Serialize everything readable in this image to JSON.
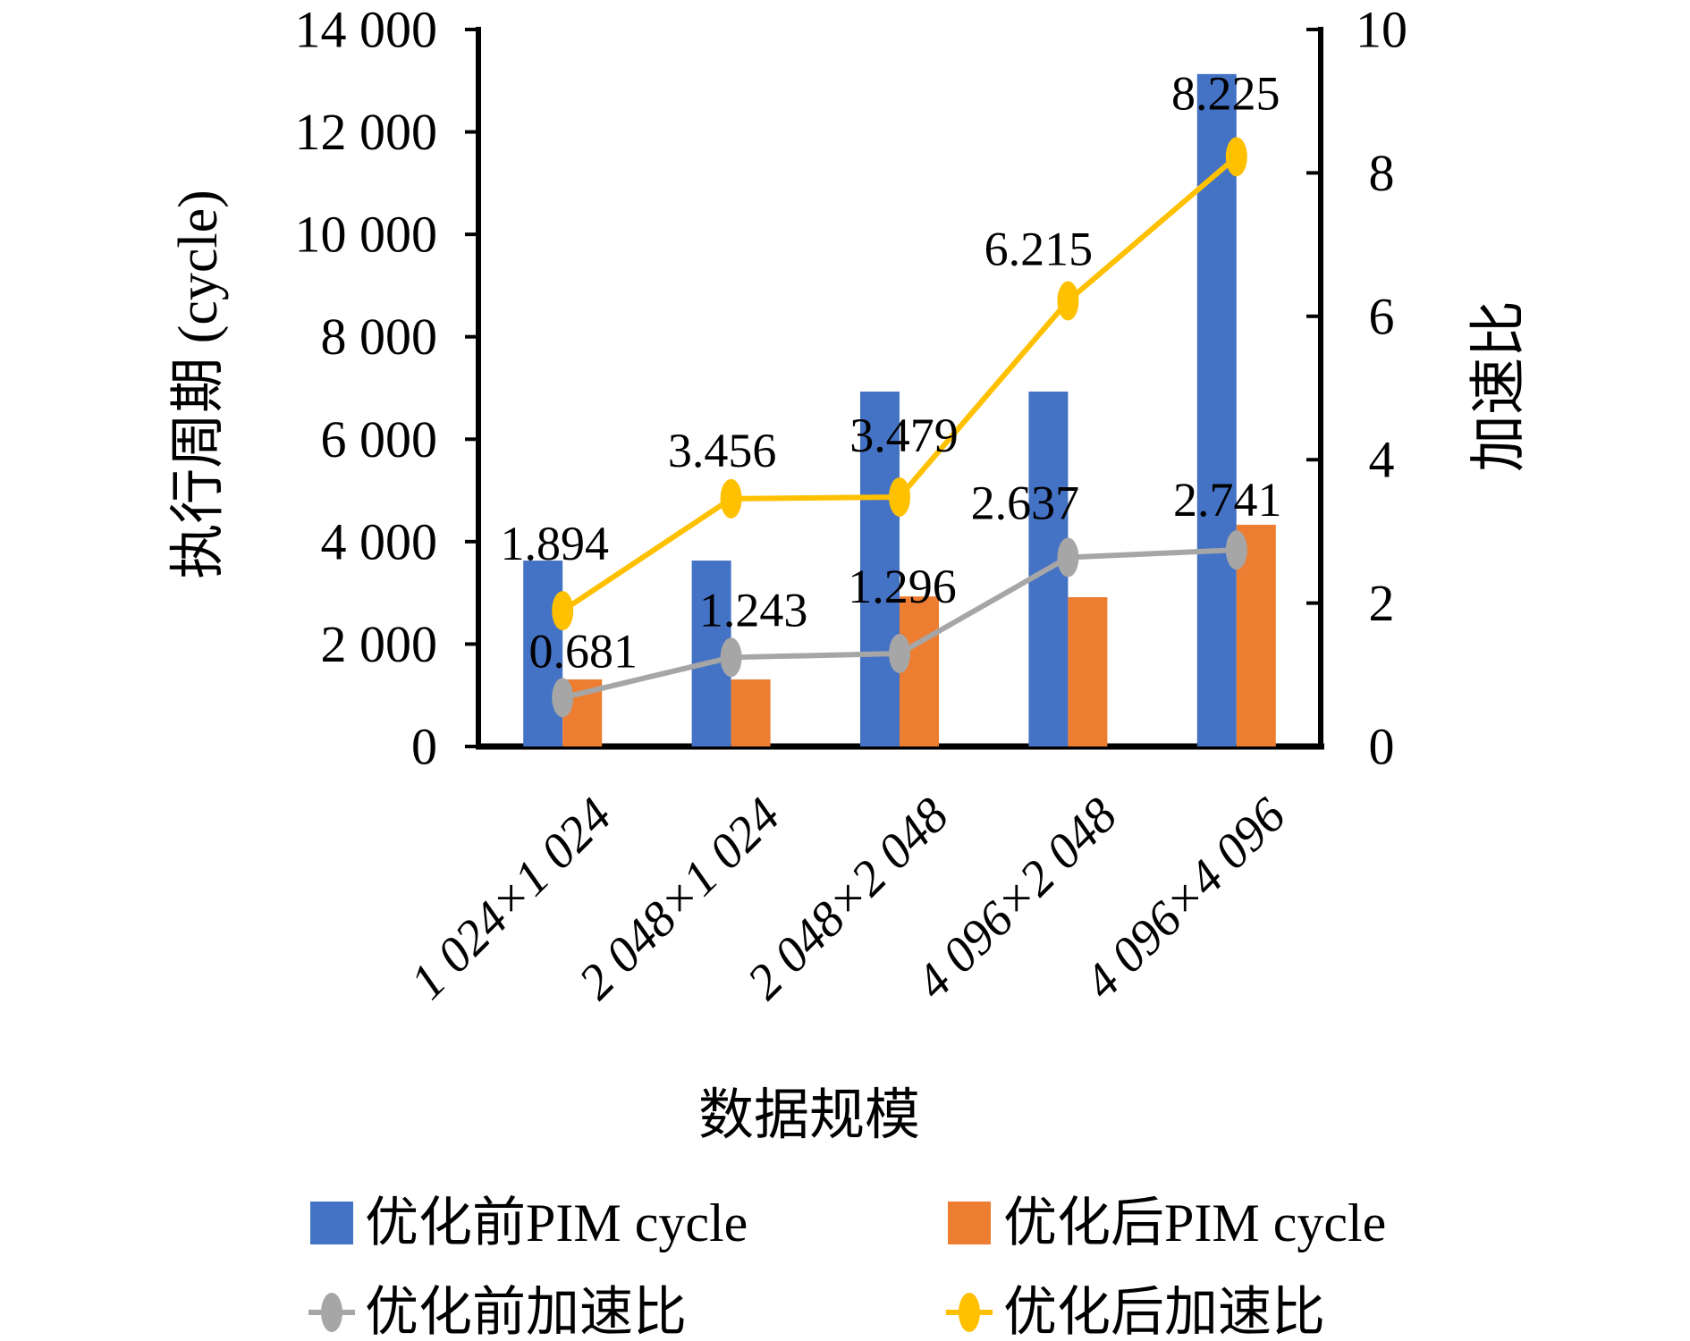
{
  "chart_data": {
    "type": "combo-bar-line",
    "title": "",
    "categories": [
      "1 024×1 024",
      "2 048×1 024",
      "2 048×2 048",
      "4 096×2 048",
      "4 096×4 096"
    ],
    "bar_series": [
      {
        "name": "优化前PIM cycle",
        "color": "#4472C4",
        "axis": "left",
        "values": [
          3630,
          3630,
          6930,
          6930,
          13130
        ]
      },
      {
        "name": "优化后PIM cycle",
        "color": "#ED7D31",
        "axis": "left",
        "values": [
          1310,
          1310,
          2930,
          2915,
          4330
        ]
      }
    ],
    "line_series": [
      {
        "name": "优化前加速比",
        "color": "#A6A6A6",
        "axis": "right",
        "values": [
          0.681,
          1.243,
          1.296,
          2.637,
          2.741
        ],
        "labels": [
          "0.681",
          "1.243",
          "1.296",
          "2.637",
          "2.741"
        ]
      },
      {
        "name": "优化后加速比",
        "color": "#FFC000",
        "axis": "right",
        "values": [
          1.894,
          3.456,
          3.479,
          6.215,
          8.225
        ],
        "labels": [
          "1.894",
          "3.456",
          "3.479",
          "6.215",
          "8.225"
        ]
      }
    ],
    "left_axis": {
      "title": "执行周期 (cycle)",
      "min": 0,
      "max": 14000,
      "step": 2000,
      "tick_labels": [
        "0",
        "2 000",
        "4 000",
        "6 000",
        "8 000",
        "10 000",
        "12 000",
        "14 000"
      ]
    },
    "right_axis": {
      "title": "加速比",
      "min": 0,
      "max": 10,
      "step": 2,
      "tick_labels": [
        "0",
        "2",
        "4",
        "6",
        "8",
        "10"
      ]
    },
    "x_axis": {
      "title": "数据规模"
    },
    "grid": false,
    "legend_position": "bottom",
    "marker_shape": "vertical-ellipse"
  }
}
